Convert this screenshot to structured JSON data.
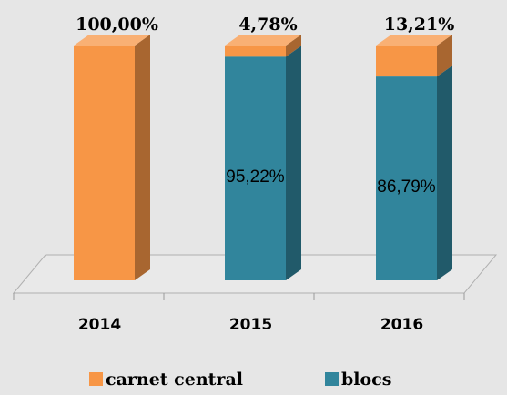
{
  "chart_data": {
    "type": "stacked-bar-3d",
    "categories": [
      "2014",
      "2015",
      "2016"
    ],
    "series": [
      {
        "name": "blocs",
        "color": "#31859c",
        "values": [
          0,
          95.22,
          86.79
        ],
        "value_labels": [
          null,
          "95,22%",
          "86,79%"
        ]
      },
      {
        "name": "carnet central",
        "color": "#f79646",
        "values": [
          100,
          4.78,
          13.21
        ],
        "value_labels": [
          "100,00%",
          "4,78%",
          "13,21%"
        ]
      }
    ]
  }
}
